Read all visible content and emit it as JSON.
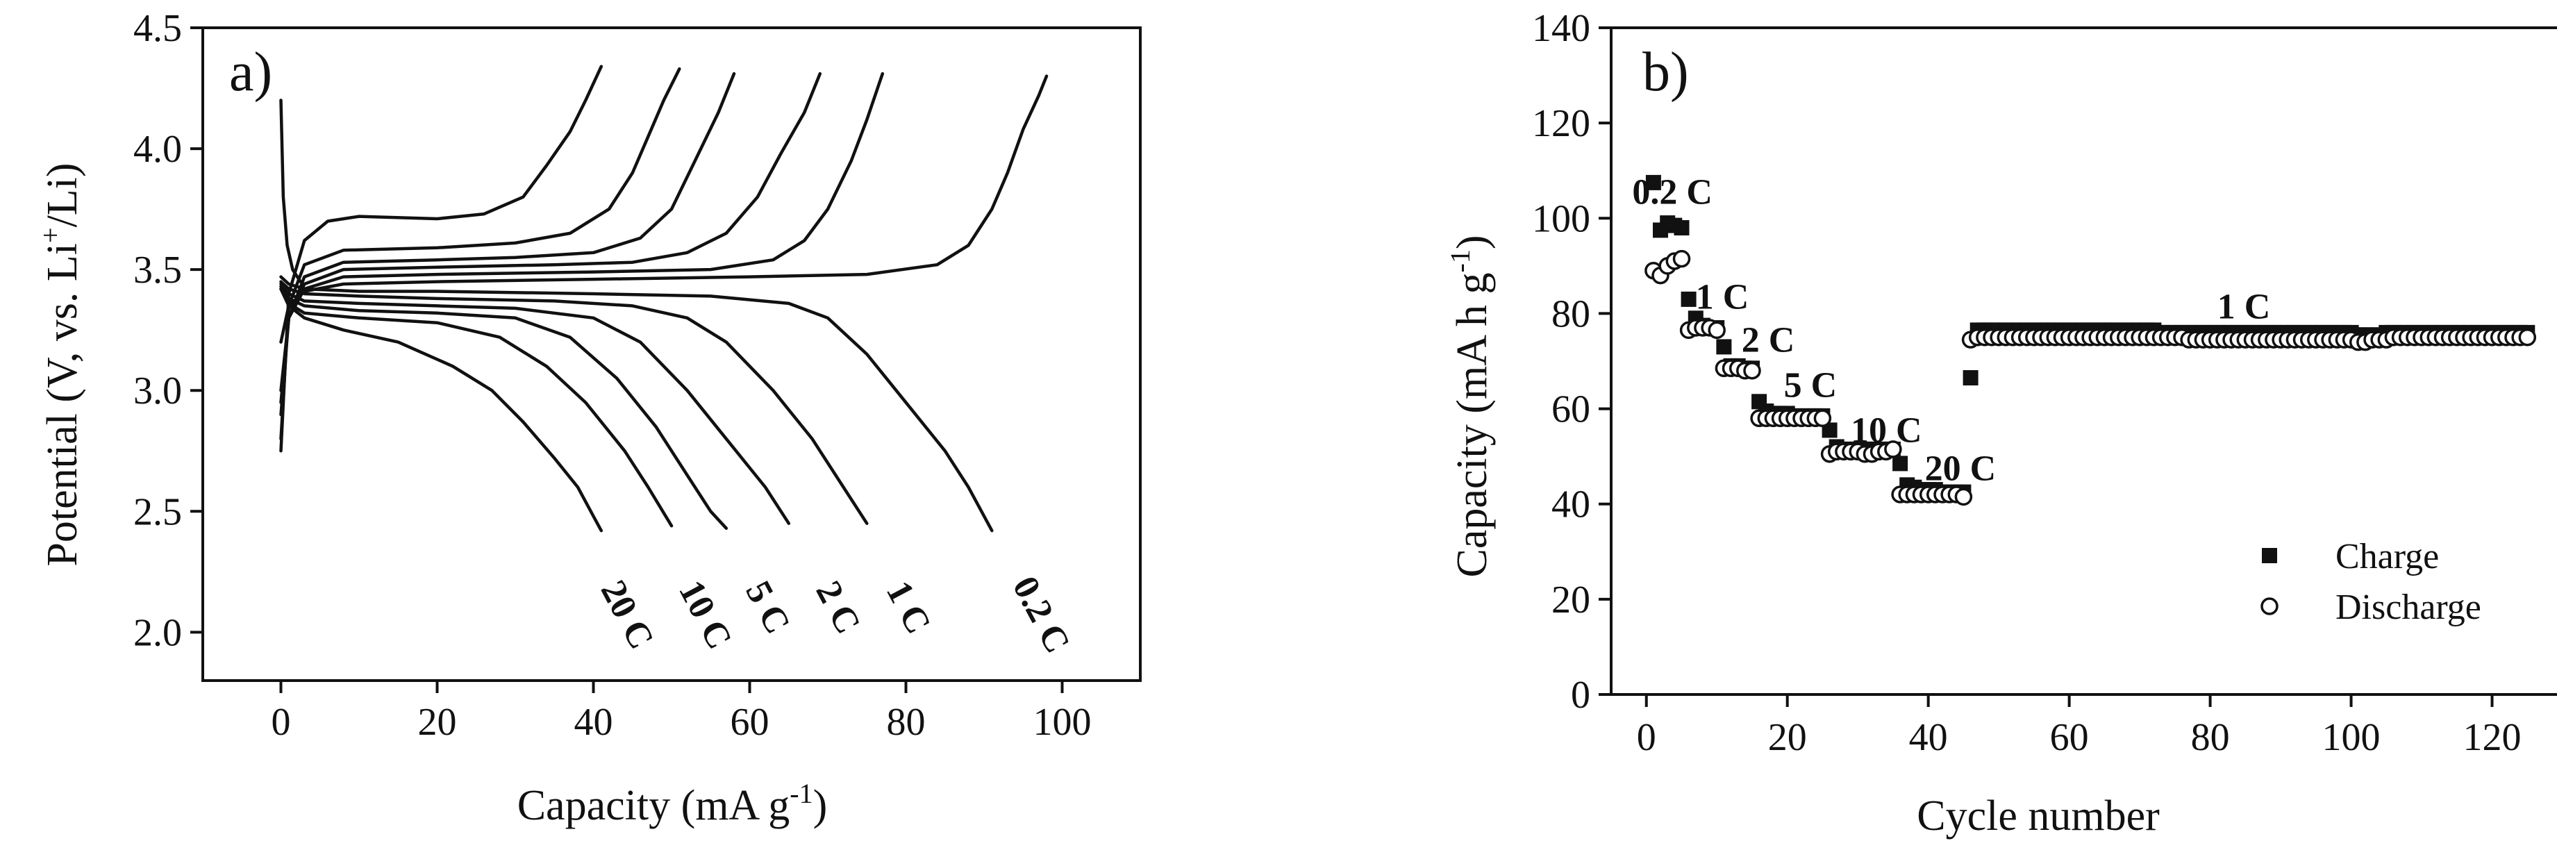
{
  "chart_data": [
    {
      "panel": "a)",
      "type": "line",
      "xlabel": "Capacity (mA g⁻¹)",
      "ylabel": "Potential (V, vs. Li⁺/Li)",
      "xlim": [
        -10,
        110
      ],
      "ylim": [
        1.8,
        4.5
      ],
      "xticks": [
        "0",
        "20",
        "40",
        "60",
        "80",
        "100"
      ],
      "yticks": [
        "2.0",
        "2.5",
        "3.0",
        "3.5",
        "4.0",
        "4.5"
      ],
      "grid": false,
      "series": [
        {
          "name": "0.2 C",
          "charge": {
            "x": [
              0,
              1,
              3,
              8,
              20,
              40,
              60,
              75,
              84,
              88,
              91,
              93,
              95,
              97,
              98
            ],
            "y": [
              3.2,
              3.35,
              3.41,
              3.44,
              3.45,
              3.46,
              3.47,
              3.48,
              3.52,
              3.6,
              3.75,
              3.9,
              4.08,
              4.22,
              4.3
            ]
          },
          "discharge": {
            "x": [
              0,
              1,
              3,
              10,
              20,
              40,
              55,
              65,
              70,
              75,
              80,
              85,
              88,
              91
            ],
            "y": [
              3.47,
              3.44,
              3.42,
              3.41,
              3.41,
              3.4,
              3.39,
              3.36,
              3.3,
              3.15,
              2.95,
              2.75,
              2.6,
              2.42
            ]
          }
        },
        {
          "name": "1 C",
          "charge": {
            "x": [
              0,
              1,
              3,
              8,
              20,
              40,
              55,
              63,
              67,
              70,
              73,
              75,
              77
            ],
            "y": [
              3.0,
              3.3,
              3.42,
              3.47,
              3.48,
              3.49,
              3.5,
              3.54,
              3.62,
              3.75,
              3.95,
              4.12,
              4.31
            ]
          },
          "discharge": {
            "x": [
              0,
              1,
              3,
              10,
              20,
              35,
              45,
              52,
              57,
              63,
              68,
              72,
              75
            ],
            "y": [
              3.45,
              3.42,
              3.4,
              3.39,
              3.38,
              3.37,
              3.35,
              3.3,
              3.2,
              3.0,
              2.8,
              2.6,
              2.45
            ]
          }
        },
        {
          "name": "2 C",
          "charge": {
            "x": [
              0,
              1,
              3,
              8,
              20,
              35,
              45,
              52,
              57,
              61,
              64,
              67,
              69
            ],
            "y": [
              2.95,
              3.3,
              3.44,
              3.5,
              3.51,
              3.52,
              3.53,
              3.57,
              3.65,
              3.8,
              3.98,
              4.15,
              4.31
            ]
          },
          "discharge": {
            "x": [
              0,
              1,
              3,
              10,
              20,
              30,
              40,
              46,
              52,
              57,
              62,
              65
            ],
            "y": [
              3.44,
              3.4,
              3.37,
              3.36,
              3.35,
              3.34,
              3.3,
              3.2,
              3.0,
              2.8,
              2.6,
              2.45
            ]
          }
        },
        {
          "name": "5 C",
          "charge": {
            "x": [
              0,
              1,
              3,
              8,
              20,
              30,
              40,
              46,
              50,
              53,
              56,
              58
            ],
            "y": [
              2.9,
              3.3,
              3.47,
              3.53,
              3.54,
              3.55,
              3.57,
              3.63,
              3.75,
              3.95,
              4.15,
              4.31
            ]
          },
          "discharge": {
            "x": [
              0,
              1,
              3,
              10,
              20,
              30,
              37,
              43,
              48,
              52,
              55,
              57
            ],
            "y": [
              3.43,
              3.38,
              3.35,
              3.33,
              3.32,
              3.3,
              3.22,
              3.05,
              2.85,
              2.65,
              2.5,
              2.43
            ]
          }
        },
        {
          "name": "10 C",
          "charge": {
            "x": [
              0,
              1,
              3,
              8,
              20,
              30,
              37,
              42,
              45,
              47,
              49,
              51
            ],
            "y": [
              2.8,
              3.35,
              3.52,
              3.58,
              3.59,
              3.61,
              3.65,
              3.75,
              3.9,
              4.05,
              4.2,
              4.33
            ]
          },
          "discharge": {
            "x": [
              0,
              1,
              3,
              10,
              20,
              28,
              34,
              39,
              44,
              47,
              50
            ],
            "y": [
              3.42,
              3.36,
              3.32,
              3.3,
              3.28,
              3.22,
              3.1,
              2.95,
              2.75,
              2.6,
              2.44
            ]
          }
        },
        {
          "name": "20 C",
          "charge": {
            "x": [
              0,
              1,
              3,
              6,
              10,
              20,
              26,
              31,
              34,
              37,
              39,
              41
            ],
            "y": [
              2.75,
              3.4,
              3.62,
              3.7,
              3.72,
              3.71,
              3.73,
              3.8,
              3.93,
              4.07,
              4.2,
              4.34
            ]
          },
          "discharge": {
            "x": [
              0,
              1,
              3,
              8,
              15,
              22,
              27,
              31,
              35,
              38,
              40,
              41
            ],
            "y": [
              3.42,
              3.35,
              3.3,
              3.25,
              3.2,
              3.1,
              3.0,
              2.87,
              2.72,
              2.6,
              2.48,
              2.42
            ]
          }
        }
      ],
      "initial_spike": {
        "x": [
          0,
          0.3,
          0.8,
          1.5,
          2.5
        ],
        "y": [
          4.2,
          3.8,
          3.6,
          3.5,
          3.45
        ]
      },
      "rate_labels": [
        "20 C",
        "10 C",
        "5 C",
        "2 C",
        "1 C",
        "0.2 C"
      ]
    },
    {
      "panel": "b)",
      "type": "scatter",
      "xlabel": "Cycle number",
      "ylabel": "Capacity (mA h g⁻¹)",
      "xlim": [
        -5,
        130
      ],
      "ylim": [
        0,
        140
      ],
      "xticks": [
        "0",
        "20",
        "40",
        "60",
        "80",
        "100",
        "120"
      ],
      "yticks": [
        "0",
        "20",
        "40",
        "60",
        "80",
        "100",
        "120",
        "140"
      ],
      "grid": false,
      "legend_position": "bottom-right",
      "series": [
        {
          "name": "Charge",
          "x": [
            1,
            2,
            3,
            4,
            5,
            6,
            7,
            8,
            9,
            10,
            11,
            12,
            13,
            14,
            15,
            16,
            17,
            18,
            19,
            20,
            21,
            22,
            23,
            24,
            25,
            26,
            27,
            28,
            29,
            30,
            31,
            32,
            33,
            34,
            35,
            36,
            37,
            38,
            39,
            40,
            41,
            42,
            43,
            44,
            45,
            46,
            47,
            48,
            49,
            50,
            51,
            52,
            53,
            54,
            55,
            56,
            57,
            58,
            59,
            60,
            61,
            62,
            63,
            64,
            65,
            66,
            67,
            68,
            69,
            70,
            71,
            72,
            73,
            74,
            75,
            76,
            77,
            78,
            79,
            80,
            81,
            82,
            83,
            84,
            85,
            86,
            87,
            88,
            89,
            90,
            91,
            92,
            93,
            94,
            95,
            96,
            97,
            98,
            99,
            100,
            101,
            102,
            103,
            104,
            105,
            106,
            107,
            108,
            109,
            110,
            111,
            112,
            113,
            114,
            115,
            116,
            117,
            118,
            119,
            120,
            121,
            122,
            123,
            124,
            125
          ],
          "y": [
            107.5,
            97.5,
            99,
            98.5,
            98,
            83,
            79,
            77.5,
            77,
            77,
            73,
            69,
            69,
            68.5,
            68.5,
            61.5,
            59.5,
            59,
            59,
            59,
            58.5,
            58.5,
            58.5,
            58.5,
            58.5,
            55.5,
            52,
            51.5,
            51.5,
            51.5,
            51.5,
            51.5,
            51.5,
            51.5,
            51.5,
            48.5,
            44,
            43.5,
            43,
            43,
            43,
            42.5,
            42.5,
            42.5,
            42.5,
            66.5,
            76.5,
            76.5,
            76.5,
            76.5,
            76.5,
            76.5,
            76.5,
            76.5,
            76.5,
            76.5,
            76.5,
            76.5,
            76.5,
            76.5,
            76.5,
            76.5,
            76.5,
            76.5,
            76.5,
            76.5,
            76.5,
            76.5,
            76.5,
            76.5,
            76.5,
            76.5,
            76,
            76,
            76,
            76,
            76,
            76,
            76,
            76,
            76,
            76,
            76,
            76,
            76,
            76,
            76,
            76,
            76,
            76,
            76,
            76,
            76,
            76,
            76,
            76,
            76,
            76,
            76,
            76,
            75.5,
            75.5,
            75.5,
            75.5,
            76,
            76,
            76,
            76,
            76,
            76,
            76,
            76,
            76,
            76,
            76,
            76,
            76,
            76,
            76,
            76,
            76,
            76,
            76,
            76,
            76
          ]
        },
        {
          "name": "Discharge",
          "x": [
            1,
            2,
            3,
            4,
            5,
            6,
            7,
            8,
            9,
            10,
            11,
            12,
            13,
            14,
            15,
            16,
            17,
            18,
            19,
            20,
            21,
            22,
            23,
            24,
            25,
            26,
            27,
            28,
            29,
            30,
            31,
            32,
            33,
            34,
            35,
            36,
            37,
            38,
            39,
            40,
            41,
            42,
            43,
            44,
            45,
            46,
            47,
            48,
            49,
            50,
            51,
            52,
            53,
            54,
            55,
            56,
            57,
            58,
            59,
            60,
            61,
            62,
            63,
            64,
            65,
            66,
            67,
            68,
            69,
            70,
            71,
            72,
            73,
            74,
            75,
            76,
            77,
            78,
            79,
            80,
            81,
            82,
            83,
            84,
            85,
            86,
            87,
            88,
            89,
            90,
            91,
            92,
            93,
            94,
            95,
            96,
            97,
            98,
            99,
            100,
            101,
            102,
            103,
            104,
            105,
            106,
            107,
            108,
            109,
            110,
            111,
            112,
            113,
            114,
            115,
            116,
            117,
            118,
            119,
            120,
            121,
            122,
            123,
            124,
            125
          ],
          "y": [
            89,
            88,
            90,
            91,
            91.5,
            76.5,
            77,
            77,
            77,
            76.5,
            68.5,
            68.5,
            68.5,
            68,
            68,
            58,
            58,
            58,
            58,
            58,
            58,
            58,
            58,
            58,
            58,
            50.5,
            51,
            51,
            51,
            51,
            50.5,
            50.5,
            51,
            51,
            51.5,
            42,
            42,
            42,
            42,
            42,
            42,
            42,
            42,
            42,
            41.5,
            74.5,
            75,
            75,
            75,
            75,
            75,
            75,
            75,
            75,
            75,
            75,
            75,
            75,
            75,
            75,
            75,
            75,
            75,
            75,
            75,
            75,
            75,
            75,
            75,
            75,
            75,
            75,
            75,
            75,
            75,
            75,
            74.5,
            74.5,
            74.5,
            74.5,
            74.5,
            74.5,
            74.5,
            74.5,
            74.5,
            74.5,
            74.5,
            74.5,
            74.5,
            74.5,
            74.5,
            74.5,
            74.5,
            74.5,
            74.5,
            74.5,
            74.5,
            74.5,
            74.5,
            74.5,
            74,
            74,
            74.5,
            74.5,
            74.5,
            75,
            75,
            75,
            75,
            75,
            75,
            75,
            75,
            75,
            75,
            75,
            75,
            75,
            75,
            75,
            75,
            75,
            75,
            75,
            75
          ]
        }
      ],
      "annotations": [
        "0.2 C",
        "1 C",
        "2 C",
        "5 C",
        "10 C",
        "20 C",
        "1 C"
      ]
    }
  ]
}
